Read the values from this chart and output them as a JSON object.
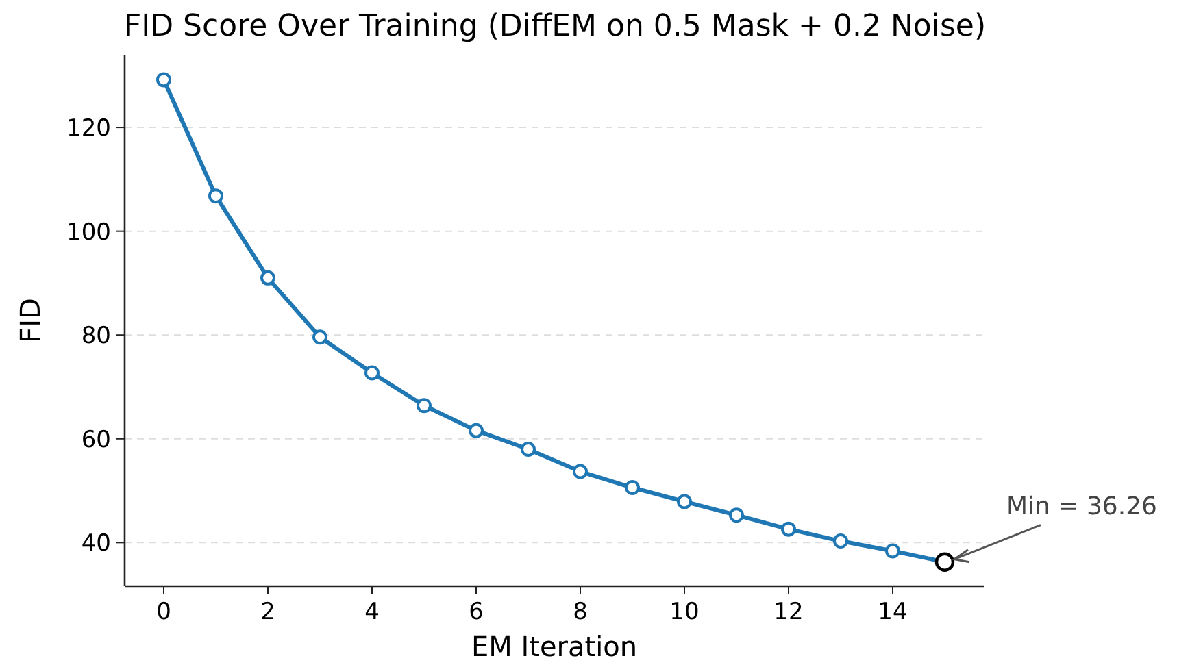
{
  "chart_data": {
    "type": "line",
    "title": "FID Score Over Training (DiffEM on 0.5 Mask + 0.2 Noise)",
    "xlabel": "EM Iteration",
    "ylabel": "FID",
    "x": [
      0,
      1,
      2,
      3,
      4,
      5,
      6,
      7,
      8,
      9,
      10,
      11,
      12,
      13,
      14,
      15
    ],
    "series": [
      {
        "color": "#1f77b4",
        "values": [
          129.2,
          106.8,
          91.0,
          79.6,
          72.7,
          66.4,
          61.6,
          58.0,
          53.7,
          50.6,
          47.9,
          45.3,
          42.6,
          40.3,
          38.4,
          36.26
        ]
      },
      {
        "type": "scatter",
        "color": "#000000",
        "x": [
          15
        ],
        "values": [
          36.26
        ]
      }
    ],
    "xlim": [
      -0.75,
      15.75
    ],
    "xticks": [
      0,
      2,
      4,
      6,
      8,
      10,
      12,
      14
    ],
    "ylim": [
      31.6,
      134
    ],
    "yticks": [
      40,
      60,
      80,
      100,
      120
    ],
    "grid": "y",
    "marker": "circle",
    "line_style": "solid",
    "annotations": [
      {
        "text": "Min = 36.26",
        "x": 15,
        "y": 36.26
      }
    ]
  }
}
